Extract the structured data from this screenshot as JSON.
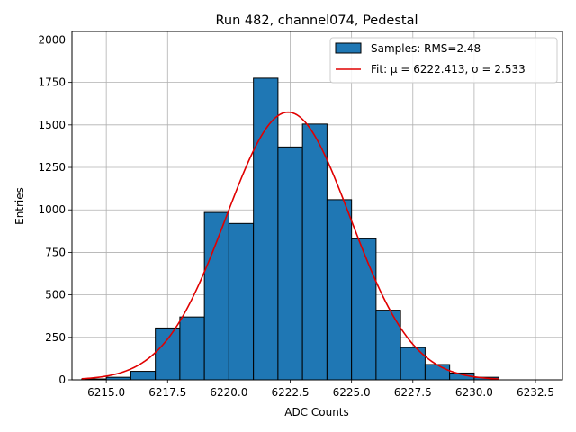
{
  "chart_data": {
    "type": "bar",
    "title": "Run 482, channel074, Pedestal",
    "xlabel": "ADC Counts",
    "ylabel": "Entries",
    "xlim": [
      6213.6,
      6233.6
    ],
    "ylim": [
      0,
      2050
    ],
    "grid": true,
    "legend_position": "top-right",
    "x_ticks": [
      6215.0,
      6217.5,
      6220.0,
      6222.5,
      6225.0,
      6227.5,
      6230.0,
      6232.5
    ],
    "x_tick_labels": [
      "6215.0",
      "6217.5",
      "6220.0",
      "6222.5",
      "6225.0",
      "6227.5",
      "6230.0",
      "6232.5"
    ],
    "y_ticks": [
      0,
      250,
      500,
      750,
      1000,
      1250,
      1500,
      1750,
      2000
    ],
    "y_tick_labels": [
      "0",
      "250",
      "500",
      "750",
      "1000",
      "1250",
      "1500",
      "1750",
      "2000"
    ],
    "bin_edges": [
      6214.0,
      6215.0,
      6216.0,
      6217.0,
      6218.0,
      6219.0,
      6220.0,
      6221.0,
      6222.0,
      6223.0,
      6224.0,
      6225.0,
      6226.0,
      6227.0,
      6228.0,
      6229.0,
      6230.0,
      6231.0
    ],
    "series": [
      {
        "name": "Samples: RMS=2.48",
        "kind": "histogram",
        "color": "#1f77b4",
        "edgecolor": "#000000",
        "values": [
          5,
          15,
          50,
          305,
          370,
          985,
          920,
          1775,
          1370,
          1505,
          1060,
          830,
          410,
          190,
          90,
          40,
          15
        ]
      },
      {
        "name": "Fit: μ = 6222.413, σ = 2.533",
        "kind": "line",
        "color": "#e00000",
        "mu": 6222.413,
        "sigma": 2.533,
        "amplitude": 1575,
        "x_range": [
          6214.0,
          6231.0
        ]
      }
    ]
  }
}
